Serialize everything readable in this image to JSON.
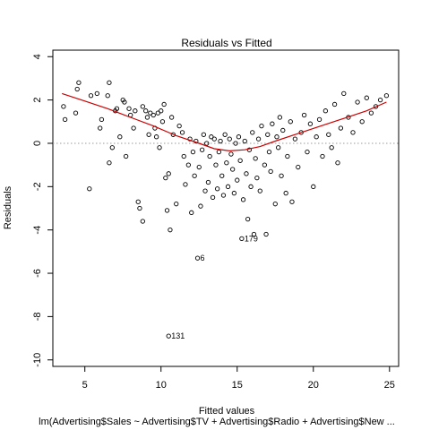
{
  "chart_data": {
    "type": "scatter",
    "title": "Residuals vs Fitted",
    "xlabel": "Fitted values",
    "ylabel": "Residuals",
    "subtitle": "lm(Advertising$Sales ~ Advertising$TV + Advertising$Radio + Advertising$New ...",
    "xlim": [
      2.9,
      25.6
    ],
    "ylim": [
      -10.3,
      4.3
    ],
    "x_ticks": [
      5,
      10,
      15,
      20,
      25
    ],
    "y_ticks": [
      -10,
      -8,
      -6,
      -4,
      -2,
      0,
      2,
      4
    ],
    "grid": false,
    "reference_line_y": 0,
    "colors": {
      "points": "#000000",
      "smooth": "#cc0000",
      "reference": "#999999"
    },
    "labeled_points": [
      {
        "label": "131",
        "x": 10.5,
        "y": -8.9
      },
      {
        "label": "6",
        "x": 12.4,
        "y": -5.3
      },
      {
        "label": "179",
        "x": 15.3,
        "y": -4.4
      }
    ],
    "smooth_line": [
      [
        3.5,
        2.3
      ],
      [
        5,
        1.95
      ],
      [
        6.5,
        1.6
      ],
      [
        8,
        1.2
      ],
      [
        9.5,
        0.8
      ],
      [
        11,
        0.35
      ],
      [
        12.5,
        0.0
      ],
      [
        13.5,
        -0.25
      ],
      [
        14.5,
        -0.35
      ],
      [
        15.5,
        -0.3
      ],
      [
        16.5,
        -0.15
      ],
      [
        17.5,
        0.1
      ],
      [
        19,
        0.45
      ],
      [
        20.5,
        0.8
      ],
      [
        22,
        1.15
      ],
      [
        23.5,
        1.5
      ],
      [
        24.8,
        1.9
      ]
    ],
    "points": [
      [
        3.6,
        1.7
      ],
      [
        3.7,
        1.1
      ],
      [
        4.4,
        1.4
      ],
      [
        4.5,
        2.5
      ],
      [
        4.6,
        2.8
      ],
      [
        5.3,
        -2.1
      ],
      [
        5.4,
        2.2
      ],
      [
        5.8,
        2.3
      ],
      [
        6.0,
        0.7
      ],
      [
        6.1,
        1.1
      ],
      [
        6.5,
        2.2
      ],
      [
        6.6,
        2.8
      ],
      [
        6.6,
        -0.9
      ],
      [
        6.8,
        -0.2
      ],
      [
        7.0,
        1.5
      ],
      [
        7.1,
        1.6
      ],
      [
        7.3,
        0.3
      ],
      [
        7.5,
        2.0
      ],
      [
        7.6,
        1.9
      ],
      [
        7.7,
        -0.6
      ],
      [
        7.9,
        1.6
      ],
      [
        8.0,
        1.3
      ],
      [
        8.2,
        0.7
      ],
      [
        8.3,
        1.5
      ],
      [
        8.5,
        -2.7
      ],
      [
        8.6,
        -3.0
      ],
      [
        8.8,
        -3.6
      ],
      [
        8.8,
        1.7
      ],
      [
        9.0,
        1.5
      ],
      [
        9.1,
        1.2
      ],
      [
        9.2,
        0.4
      ],
      [
        9.3,
        1.4
      ],
      [
        9.5,
        1.3
      ],
      [
        9.6,
        0.7
      ],
      [
        9.7,
        0.3
      ],
      [
        9.8,
        1.4
      ],
      [
        9.9,
        -0.2
      ],
      [
        10.0,
        1.5
      ],
      [
        10.1,
        1.0
      ],
      [
        10.2,
        1.8
      ],
      [
        10.3,
        -1.6
      ],
      [
        10.4,
        -3.1
      ],
      [
        10.5,
        -8.9
      ],
      [
        10.5,
        -1.4
      ],
      [
        10.6,
        -4.0
      ],
      [
        10.7,
        1.2
      ],
      [
        10.8,
        0.4
      ],
      [
        11.0,
        -2.8
      ],
      [
        11.2,
        0.8
      ],
      [
        11.4,
        0.5
      ],
      [
        11.5,
        -0.6
      ],
      [
        11.6,
        -1.9
      ],
      [
        11.8,
        -1.0
      ],
      [
        11.9,
        0.2
      ],
      [
        12.0,
        -3.2
      ],
      [
        12.1,
        -0.4
      ],
      [
        12.2,
        -1.5
      ],
      [
        12.3,
        0.1
      ],
      [
        12.4,
        -5.3
      ],
      [
        12.5,
        -1.1
      ],
      [
        12.6,
        -2.9
      ],
      [
        12.7,
        -0.3
      ],
      [
        12.8,
        0.4
      ],
      [
        12.9,
        -2.2
      ],
      [
        13.0,
        0.0
      ],
      [
        13.1,
        -1.8
      ],
      [
        13.2,
        -0.6
      ],
      [
        13.3,
        0.3
      ],
      [
        13.4,
        -2.5
      ],
      [
        13.5,
        0.2
      ],
      [
        13.6,
        -1.0
      ],
      [
        13.7,
        -2.1
      ],
      [
        13.8,
        -0.4
      ],
      [
        13.9,
        0.1
      ],
      [
        14.0,
        -1.5
      ],
      [
        14.1,
        -2.4
      ],
      [
        14.2,
        0.4
      ],
      [
        14.3,
        -0.9
      ],
      [
        14.4,
        -2.0
      ],
      [
        14.5,
        0.2
      ],
      [
        14.6,
        -0.5
      ],
      [
        14.7,
        -1.2
      ],
      [
        14.8,
        -2.3
      ],
      [
        14.9,
        0.0
      ],
      [
        15.0,
        -1.7
      ],
      [
        15.1,
        0.3
      ],
      [
        15.2,
        -0.8
      ],
      [
        15.3,
        -4.4
      ],
      [
        15.4,
        -2.6
      ],
      [
        15.5,
        0.1
      ],
      [
        15.6,
        -1.4
      ],
      [
        15.7,
        -3.5
      ],
      [
        15.8,
        -0.3
      ],
      [
        15.9,
        -2.0
      ],
      [
        16.0,
        0.5
      ],
      [
        16.1,
        -4.2
      ],
      [
        16.2,
        -0.7
      ],
      [
        16.3,
        -1.6
      ],
      [
        16.4,
        0.2
      ],
      [
        16.5,
        -2.2
      ],
      [
        16.6,
        0.8
      ],
      [
        16.8,
        -1.0
      ],
      [
        16.9,
        -4.2
      ],
      [
        17.0,
        0.4
      ],
      [
        17.1,
        -0.4
      ],
      [
        17.2,
        -1.3
      ],
      [
        17.3,
        0.9
      ],
      [
        17.5,
        -2.8
      ],
      [
        17.6,
        0.3
      ],
      [
        17.7,
        -0.2
      ],
      [
        17.8,
        1.2
      ],
      [
        17.9,
        -1.5
      ],
      [
        18.0,
        0.6
      ],
      [
        18.2,
        -2.3
      ],
      [
        18.3,
        -0.6
      ],
      [
        18.5,
        1.0
      ],
      [
        18.6,
        -2.7
      ],
      [
        18.8,
        0.2
      ],
      [
        19.0,
        -1.1
      ],
      [
        19.2,
        0.5
      ],
      [
        19.4,
        1.3
      ],
      [
        19.6,
        -0.4
      ],
      [
        19.8,
        0.9
      ],
      [
        20.0,
        -2.0
      ],
      [
        20.2,
        0.3
      ],
      [
        20.4,
        1.1
      ],
      [
        20.6,
        -0.6
      ],
      [
        20.8,
        1.5
      ],
      [
        21.0,
        0.4
      ],
      [
        21.2,
        -0.2
      ],
      [
        21.4,
        1.8
      ],
      [
        21.6,
        -0.9
      ],
      [
        21.8,
        0.7
      ],
      [
        22.0,
        2.3
      ],
      [
        22.3,
        1.2
      ],
      [
        22.6,
        0.5
      ],
      [
        22.9,
        1.9
      ],
      [
        23.2,
        1.0
      ],
      [
        23.5,
        2.1
      ],
      [
        23.8,
        1.4
      ],
      [
        24.1,
        1.7
      ],
      [
        24.4,
        2.0
      ],
      [
        24.8,
        2.2
      ]
    ]
  }
}
